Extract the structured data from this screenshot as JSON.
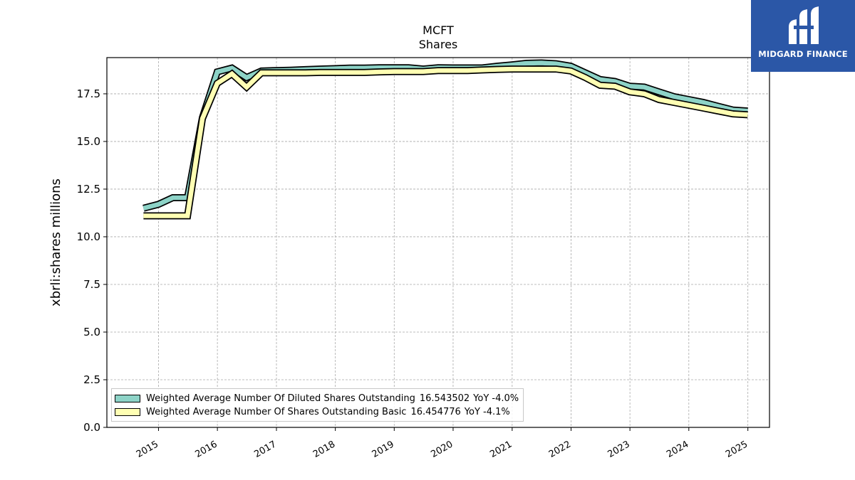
{
  "chart_data": {
    "type": "area",
    "title": "MCFT",
    "subtitle": "Shares",
    "xlabel": "",
    "ylabel": "xbrli:shares millions",
    "ylim": [
      0,
      19.4
    ],
    "xlim": [
      "2014-02-15",
      "2025-05-15"
    ],
    "y_ticks": [
      "0.0",
      "2.5",
      "5.0",
      "7.5",
      "10.0",
      "12.5",
      "15.0",
      "17.5"
    ],
    "x_ticks": [
      "2015",
      "2016",
      "2017",
      "2018",
      "2019",
      "2020",
      "2021",
      "2022",
      "2023",
      "2024",
      "2025"
    ],
    "grid": true,
    "legend_position": "lower-left",
    "x": [
      "2014-09-30",
      "2014-12-31",
      "2015-03-31",
      "2015-06-30",
      "2015-09-30",
      "2015-12-31",
      "2016-03-31",
      "2016-06-30",
      "2016-09-30",
      "2016-12-31",
      "2017-03-31",
      "2017-06-30",
      "2017-09-30",
      "2017-12-31",
      "2018-03-31",
      "2018-06-30",
      "2018-09-30",
      "2018-12-31",
      "2019-03-31",
      "2019-06-30",
      "2019-09-30",
      "2019-12-31",
      "2020-03-31",
      "2020-06-30",
      "2020-09-30",
      "2020-12-31",
      "2021-03-31",
      "2021-06-30",
      "2021-09-30",
      "2021-12-31",
      "2022-03-31",
      "2022-06-30",
      "2022-09-30",
      "2022-12-31",
      "2023-03-31",
      "2023-06-30",
      "2023-09-30",
      "2023-12-31",
      "2024-03-31",
      "2024-06-30",
      "2024-09-30",
      "2024-12-31"
    ],
    "series": [
      {
        "name": "Weighted Average Number Of Diluted Shares Outstanding",
        "legend_value": "16.543502",
        "legend_yoy": "YoY -4.0%",
        "color": "#8dd3c7",
        "values": [
          11.5,
          11.7,
          12.05,
          12.05,
          16.25,
          18.65,
          18.85,
          18.35,
          18.7,
          18.72,
          18.74,
          18.77,
          18.8,
          18.82,
          18.85,
          18.85,
          18.87,
          18.87,
          18.87,
          18.8,
          18.87,
          18.86,
          18.86,
          18.86,
          18.95,
          19.02,
          19.1,
          19.12,
          19.08,
          18.95,
          18.6,
          18.25,
          18.15,
          17.9,
          17.85,
          17.6,
          17.35,
          17.2,
          17.05,
          16.85,
          16.65,
          16.6
        ]
      },
      {
        "name": "Weighted Average Number Of Shares Outstanding Basic",
        "legend_value": "16.454776",
        "legend_yoy": "YoY -4.1%",
        "color": "#ffffb3",
        "values": [
          11.1,
          11.1,
          11.1,
          11.1,
          16.2,
          18.05,
          18.55,
          17.85,
          18.6,
          18.6,
          18.6,
          18.6,
          18.62,
          18.62,
          18.62,
          18.62,
          18.65,
          18.67,
          18.67,
          18.67,
          18.72,
          18.72,
          18.72,
          18.75,
          18.78,
          18.8,
          18.8,
          18.8,
          18.8,
          18.7,
          18.35,
          17.95,
          17.9,
          17.6,
          17.5,
          17.2,
          17.05,
          16.9,
          16.75,
          16.6,
          16.45,
          16.4
        ]
      }
    ]
  },
  "logo": {
    "text": "MIDGARD FINANCE"
  }
}
